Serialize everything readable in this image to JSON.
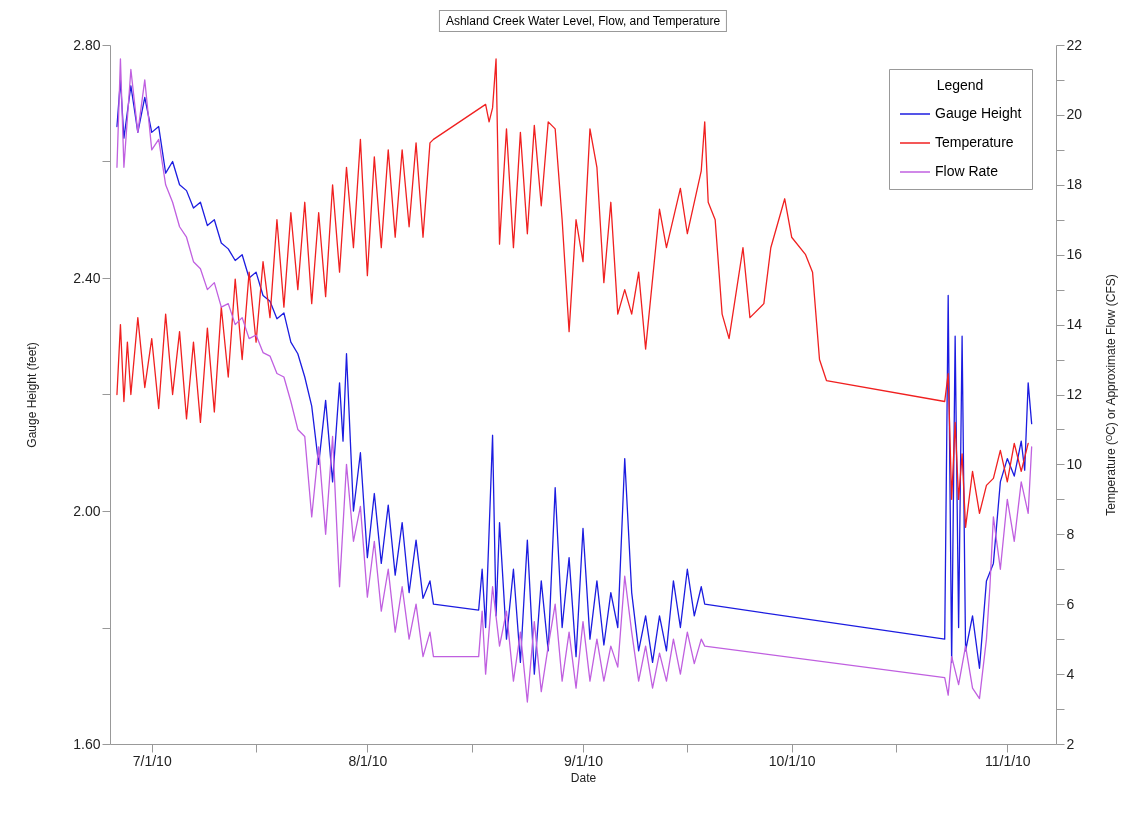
{
  "chart_data": {
    "type": "line",
    "title": "Ashland Creek Water Level, Flow, and Temperature",
    "xlabel": "Date",
    "ylabel": "Gauge Height (feet)",
    "y2label": "Temperature (ᴼC) or Approximate Flow (CFS)",
    "legend_title": "Legend",
    "legend": "top right",
    "xlim": [
      "2010-06-25",
      "2010-11-08"
    ],
    "xticks": [
      {
        "value": "2010-07-01",
        "label": "7/1/10"
      },
      {
        "value": "2010-07-16",
        "label": null
      },
      {
        "value": "2010-08-01",
        "label": "8/1/10"
      },
      {
        "value": "2010-08-16",
        "label": null
      },
      {
        "value": "2010-09-01",
        "label": "9/1/10"
      },
      {
        "value": "2010-09-16",
        "label": null
      },
      {
        "value": "2010-10-01",
        "label": "10/1/10"
      },
      {
        "value": "2010-10-16",
        "label": null
      },
      {
        "value": "2010-11-01",
        "label": "11/1/10"
      }
    ],
    "ylim": [
      1.6,
      2.8
    ],
    "yticks": [
      {
        "value": 1.6,
        "label": "1.60"
      },
      {
        "value": 1.8,
        "label": null
      },
      {
        "value": 2.0,
        "label": "2.00"
      },
      {
        "value": 2.2,
        "label": null
      },
      {
        "value": 2.4,
        "label": "2.40"
      },
      {
        "value": 2.6,
        "label": null
      },
      {
        "value": 2.8,
        "label": "2.80"
      }
    ],
    "y2lim": [
      2,
      22
    ],
    "y2ticks": [
      2,
      {
        "value": 3,
        "label": null
      },
      4,
      {
        "value": 5,
        "label": null
      },
      6,
      {
        "value": 7,
        "label": null
      },
      8,
      {
        "value": 9,
        "label": null
      },
      10,
      {
        "value": 11,
        "label": null
      },
      12,
      {
        "value": 13,
        "label": null
      },
      14,
      {
        "value": 15,
        "label": null
      },
      16,
      {
        "value": 17,
        "label": null
      },
      18,
      {
        "value": 19,
        "label": null
      },
      20,
      {
        "value": 21,
        "label": null
      },
      22
    ],
    "series": [
      {
        "name": "Gauge Height",
        "color": "#1c1ce0",
        "x": [
          "2010-06-26",
          "2010-06-26T12:00",
          "2010-06-27",
          "2010-06-28",
          "2010-06-29",
          "2010-06-30",
          "2010-07-01",
          "2010-07-02",
          "2010-07-03",
          "2010-07-04",
          "2010-07-05",
          "2010-07-06",
          "2010-07-07",
          "2010-07-08",
          "2010-07-09",
          "2010-07-10",
          "2010-07-11",
          "2010-07-12",
          "2010-07-13",
          "2010-07-14",
          "2010-07-15",
          "2010-07-16",
          "2010-07-17",
          "2010-07-18",
          "2010-07-19",
          "2010-07-20",
          "2010-07-21",
          "2010-07-22",
          "2010-07-23",
          "2010-07-24",
          "2010-07-25",
          "2010-07-26",
          "2010-07-27",
          "2010-07-28",
          "2010-07-28T12:00",
          "2010-07-29",
          "2010-07-30",
          "2010-07-31",
          "2010-08-01",
          "2010-08-02",
          "2010-08-03",
          "2010-08-04",
          "2010-08-05",
          "2010-08-06",
          "2010-08-07",
          "2010-08-08",
          "2010-08-09",
          "2010-08-10",
          "2010-08-10T12:00",
          "2010-08-17",
          "2010-08-17T12:00",
          "2010-08-18",
          "2010-08-19",
          "2010-08-19T12:00",
          "2010-08-20",
          "2010-08-21",
          "2010-08-22",
          "2010-08-23",
          "2010-08-24",
          "2010-08-25",
          "2010-08-26",
          "2010-08-27",
          "2010-08-28",
          "2010-08-29",
          "2010-08-30",
          "2010-08-31",
          "2010-09-01",
          "2010-09-02",
          "2010-09-03",
          "2010-09-04",
          "2010-09-05",
          "2010-09-06",
          "2010-09-07",
          "2010-09-08",
          "2010-09-09",
          "2010-09-10",
          "2010-09-11",
          "2010-09-12",
          "2010-09-13",
          "2010-09-14",
          "2010-09-15",
          "2010-09-16",
          "2010-09-17",
          "2010-09-18",
          "2010-09-18T12:00",
          "2010-10-23",
          "2010-10-23T12:00",
          "2010-10-24",
          "2010-10-24T12:00",
          "2010-10-25",
          "2010-10-25T12:00",
          "2010-10-26",
          "2010-10-27",
          "2010-10-28",
          "2010-10-29",
          "2010-10-30",
          "2010-10-31",
          "2010-11-01",
          "2010-11-02",
          "2010-11-03",
          "2010-11-03T12:00",
          "2010-11-04",
          "2010-11-04T12:00"
        ],
        "values": [
          2.66,
          2.74,
          2.64,
          2.73,
          2.65,
          2.71,
          2.65,
          2.66,
          2.58,
          2.6,
          2.56,
          2.55,
          2.52,
          2.53,
          2.49,
          2.5,
          2.46,
          2.45,
          2.43,
          2.44,
          2.4,
          2.41,
          2.37,
          2.36,
          2.33,
          2.34,
          2.29,
          2.27,
          2.23,
          2.18,
          2.08,
          2.19,
          2.05,
          2.22,
          2.12,
          2.27,
          2.0,
          2.1,
          1.92,
          2.03,
          1.91,
          2.01,
          1.89,
          1.98,
          1.86,
          1.95,
          1.85,
          1.88,
          1.84,
          1.83,
          1.9,
          1.8,
          2.13,
          1.82,
          1.98,
          1.78,
          1.9,
          1.74,
          1.95,
          1.72,
          1.88,
          1.76,
          2.04,
          1.8,
          1.92,
          1.75,
          1.97,
          1.78,
          1.88,
          1.77,
          1.86,
          1.8,
          2.09,
          1.86,
          1.76,
          1.82,
          1.74,
          1.82,
          1.76,
          1.88,
          1.8,
          1.9,
          1.82,
          1.87,
          1.84,
          1.78,
          2.37,
          1.74,
          2.3,
          1.8,
          2.3,
          1.76,
          1.82,
          1.73,
          1.88,
          1.91,
          2.05,
          2.09,
          2.06,
          2.12,
          2.07,
          2.22,
          2.15
        ]
      },
      {
        "name": "Temperature",
        "color": "#f02020",
        "axis": "y2",
        "x": [
          "2010-06-26",
          "2010-06-26T12:00",
          "2010-06-27",
          "2010-06-27T12:00",
          "2010-06-28",
          "2010-06-29",
          "2010-06-30",
          "2010-07-01",
          "2010-07-02",
          "2010-07-03",
          "2010-07-04",
          "2010-07-05",
          "2010-07-06",
          "2010-07-07",
          "2010-07-08",
          "2010-07-09",
          "2010-07-10",
          "2010-07-11",
          "2010-07-12",
          "2010-07-13",
          "2010-07-14",
          "2010-07-15",
          "2010-07-16",
          "2010-07-17",
          "2010-07-18",
          "2010-07-19",
          "2010-07-20",
          "2010-07-21",
          "2010-07-22",
          "2010-07-23",
          "2010-07-24",
          "2010-07-25",
          "2010-07-26",
          "2010-07-27",
          "2010-07-28",
          "2010-07-29",
          "2010-07-30",
          "2010-07-31",
          "2010-08-01",
          "2010-08-02",
          "2010-08-03",
          "2010-08-04",
          "2010-08-05",
          "2010-08-06",
          "2010-08-07",
          "2010-08-08",
          "2010-08-09",
          "2010-08-10",
          "2010-08-10T12:00",
          "2010-08-18",
          "2010-08-18T12:00",
          "2010-08-19",
          "2010-08-19T12:00",
          "2010-08-20",
          "2010-08-21",
          "2010-08-22",
          "2010-08-23",
          "2010-08-24",
          "2010-08-25",
          "2010-08-26",
          "2010-08-27",
          "2010-08-28",
          "2010-08-29",
          "2010-08-30",
          "2010-08-31",
          "2010-09-01",
          "2010-09-02",
          "2010-09-03",
          "2010-09-04",
          "2010-09-05",
          "2010-09-06",
          "2010-09-07",
          "2010-09-08",
          "2010-09-09",
          "2010-09-10",
          "2010-09-12",
          "2010-09-13",
          "2010-09-15",
          "2010-09-16",
          "2010-09-18",
          "2010-09-18T12:00",
          "2010-09-19",
          "2010-09-20",
          "2010-09-21",
          "2010-09-22",
          "2010-09-24",
          "2010-09-25",
          "2010-09-27",
          "2010-09-28",
          "2010-09-30",
          "2010-10-01",
          "2010-10-03",
          "2010-10-04",
          "2010-10-05",
          "2010-10-06",
          "2010-10-23",
          "2010-10-23T12:00",
          "2010-10-24",
          "2010-10-24T12:00",
          "2010-10-25",
          "2010-10-25T12:00",
          "2010-10-26",
          "2010-10-27",
          "2010-10-28",
          "2010-10-29",
          "2010-10-30",
          "2010-10-31",
          "2010-11-01",
          "2010-11-02",
          "2010-11-03",
          "2010-11-04"
        ],
        "values": [
          12.0,
          14.0,
          11.8,
          13.5,
          12.0,
          14.2,
          12.2,
          13.6,
          11.6,
          14.3,
          12.0,
          13.8,
          11.3,
          13.5,
          11.2,
          13.9,
          11.5,
          14.5,
          12.5,
          15.3,
          13.0,
          15.5,
          13.5,
          15.8,
          14.2,
          17.0,
          14.5,
          17.2,
          15.0,
          17.5,
          14.6,
          17.2,
          14.8,
          18.0,
          15.5,
          18.5,
          16.2,
          19.3,
          15.4,
          18.8,
          16.2,
          19.0,
          16.5,
          19.0,
          16.8,
          19.2,
          16.5,
          19.2,
          19.3,
          20.3,
          19.8,
          20.2,
          21.6,
          16.3,
          19.6,
          16.2,
          19.5,
          16.6,
          19.7,
          17.4,
          19.8,
          19.6,
          17.0,
          13.8,
          17.0,
          15.8,
          19.6,
          18.5,
          15.2,
          17.5,
          14.3,
          15.0,
          14.3,
          15.5,
          13.3,
          17.3,
          16.2,
          17.9,
          16.6,
          18.4,
          19.8,
          17.5,
          17.0,
          14.3,
          13.6,
          16.2,
          14.2,
          14.6,
          16.2,
          17.6,
          16.5,
          16.0,
          15.5,
          13.0,
          12.4,
          11.8,
          12.6,
          9.0,
          11.2,
          9.0,
          10.3,
          8.2,
          9.8,
          8.6,
          9.4,
          9.6,
          10.4,
          9.5,
          10.6,
          9.8,
          10.6
        ]
      },
      {
        "name": "Flow Rate",
        "color": "#c060e0",
        "axis": "y2",
        "x": [
          "2010-06-26",
          "2010-06-26T12:00",
          "2010-06-27",
          "2010-06-28",
          "2010-06-29",
          "2010-06-30",
          "2010-07-01",
          "2010-07-02",
          "2010-07-03",
          "2010-07-04",
          "2010-07-05",
          "2010-07-06",
          "2010-07-07",
          "2010-07-08",
          "2010-07-09",
          "2010-07-10",
          "2010-07-11",
          "2010-07-12",
          "2010-07-13",
          "2010-07-14",
          "2010-07-15",
          "2010-07-16",
          "2010-07-17",
          "2010-07-18",
          "2010-07-19",
          "2010-07-20",
          "2010-07-21",
          "2010-07-22",
          "2010-07-23",
          "2010-07-24",
          "2010-07-25",
          "2010-07-26",
          "2010-07-27",
          "2010-07-28",
          "2010-07-29",
          "2010-07-30",
          "2010-07-31",
          "2010-08-01",
          "2010-08-02",
          "2010-08-03",
          "2010-08-04",
          "2010-08-05",
          "2010-08-06",
          "2010-08-07",
          "2010-08-08",
          "2010-08-09",
          "2010-08-10",
          "2010-08-10T12:00",
          "2010-08-17",
          "2010-08-17T12:00",
          "2010-08-18",
          "2010-08-19",
          "2010-08-20",
          "2010-08-21",
          "2010-08-22",
          "2010-08-23",
          "2010-08-24",
          "2010-08-25",
          "2010-08-26",
          "2010-08-27",
          "2010-08-28",
          "2010-08-29",
          "2010-08-30",
          "2010-08-31",
          "2010-09-01",
          "2010-09-02",
          "2010-09-03",
          "2010-09-04",
          "2010-09-05",
          "2010-09-06",
          "2010-09-07",
          "2010-09-08",
          "2010-09-09",
          "2010-09-10",
          "2010-09-11",
          "2010-09-12",
          "2010-09-13",
          "2010-09-14",
          "2010-09-15",
          "2010-09-16",
          "2010-09-17",
          "2010-09-18",
          "2010-09-18T12:00",
          "2010-10-23",
          "2010-10-23T12:00",
          "2010-10-24",
          "2010-10-25",
          "2010-10-26",
          "2010-10-27",
          "2010-10-28",
          "2010-10-29",
          "2010-10-29T12:00",
          "2010-10-30",
          "2010-10-31",
          "2010-11-01",
          "2010-11-02",
          "2010-11-03",
          "2010-11-04",
          "2010-11-04T12:00"
        ],
        "values": [
          18.5,
          21.6,
          18.5,
          21.3,
          19.5,
          21.0,
          19.0,
          19.3,
          18.0,
          17.5,
          16.8,
          16.5,
          15.8,
          15.6,
          15.0,
          15.2,
          14.5,
          14.6,
          14.0,
          14.2,
          13.6,
          13.7,
          13.2,
          13.1,
          12.6,
          12.5,
          11.8,
          11.0,
          10.8,
          8.5,
          10.5,
          8.0,
          10.8,
          6.5,
          10.0,
          7.8,
          8.8,
          6.2,
          7.8,
          5.8,
          7.0,
          5.2,
          6.5,
          5.0,
          6.0,
          4.5,
          5.2,
          4.5,
          4.5,
          5.8,
          4.0,
          6.5,
          4.8,
          5.8,
          3.8,
          5.2,
          3.2,
          5.5,
          3.5,
          4.8,
          6.0,
          3.8,
          5.2,
          3.6,
          5.5,
          3.8,
          5.0,
          3.8,
          4.8,
          4.2,
          6.8,
          5.2,
          3.8,
          4.8,
          3.6,
          4.6,
          3.8,
          5.0,
          4.0,
          5.2,
          4.3,
          5.0,
          4.8,
          3.9,
          3.4,
          4.5,
          3.7,
          4.8,
          3.6,
          3.3,
          5.0,
          6.5,
          8.5,
          7.0,
          9.0,
          7.8,
          9.5,
          8.6,
          10.5
        ]
      }
    ]
  }
}
